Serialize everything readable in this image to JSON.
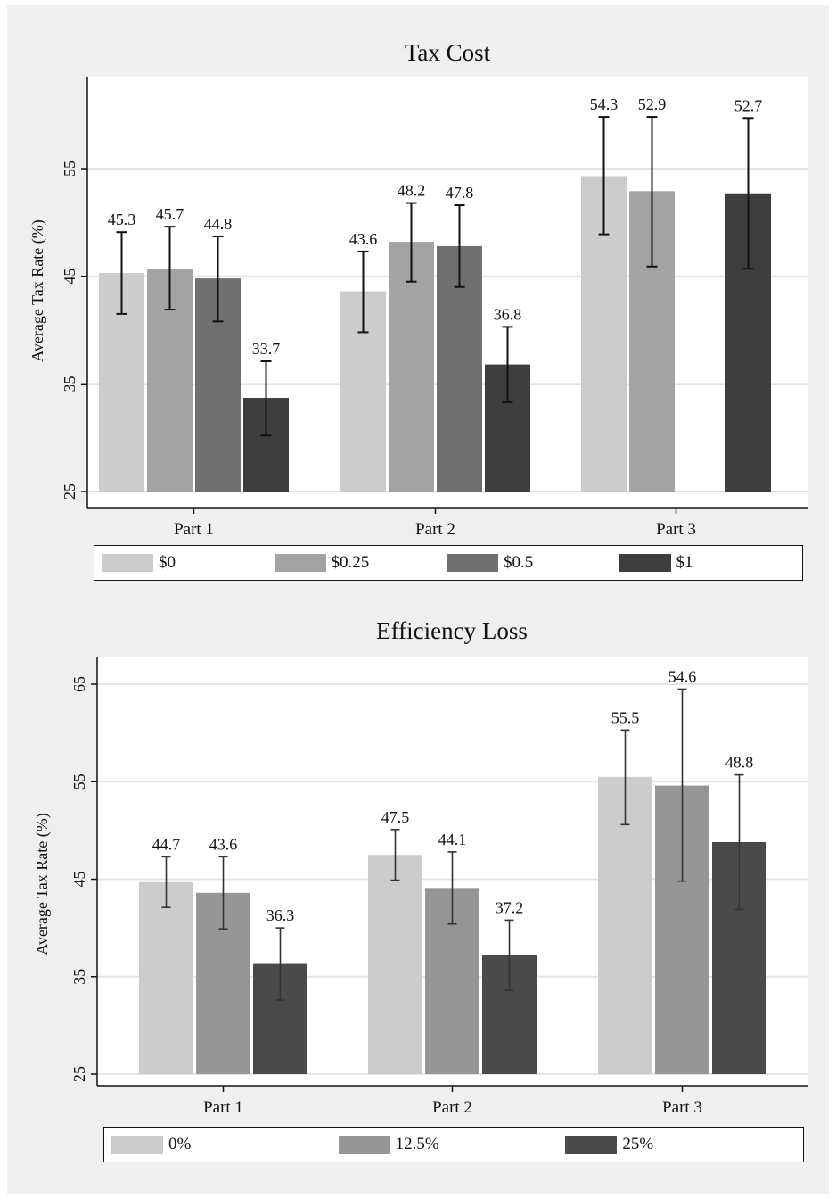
{
  "colors": {
    "panel_bg": "#efefef",
    "plot_bg": "#ffffff",
    "gridline": "#e4e4e4",
    "error_bar": "#111111"
  },
  "chart_data": [
    {
      "type": "bar",
      "title": "Tax Cost",
      "xlabel": "",
      "ylabel": "Average Tax Rate (%)",
      "ylim": [
        25,
        60
      ],
      "yticks": [
        25,
        35,
        45,
        55
      ],
      "grid": true,
      "legend_position": "bottom",
      "categories": [
        "Part 1",
        "Part 2",
        "Part 3"
      ],
      "series": [
        {
          "name": "$0",
          "color": "#cccccc",
          "values": [
            45.3,
            43.6,
            54.3
          ],
          "labels": [
            "45.3",
            "43.6",
            "54.3"
          ],
          "err_low": [
            41.5,
            39.8,
            48.9
          ],
          "err_high": [
            49.1,
            47.3,
            59.8
          ]
        },
        {
          "name": "$0.25",
          "color": "#a3a3a3",
          "values": [
            45.7,
            48.2,
            52.9
          ],
          "labels": [
            "45.7",
            "48.2",
            "52.9"
          ],
          "err_low": [
            41.9,
            44.5,
            45.9
          ],
          "err_high": [
            49.6,
            51.8,
            59.8
          ]
        },
        {
          "name": "$0.5",
          "color": "#707070",
          "values": [
            44.8,
            47.8,
            null
          ],
          "labels": [
            "44.8",
            "47.8",
            ""
          ],
          "err_low": [
            40.8,
            44.0,
            null
          ],
          "err_high": [
            48.7,
            51.6,
            null
          ]
        },
        {
          "name": "$1",
          "color": "#3e3e3e",
          "values": [
            33.7,
            36.8,
            52.7
          ],
          "labels": [
            "33.7",
            "36.8",
            "52.7"
          ],
          "err_low": [
            30.2,
            33.3,
            45.7
          ],
          "err_high": [
            37.1,
            40.3,
            59.7
          ]
        }
      ]
    },
    {
      "type": "bar",
      "title": "Efficiency Loss",
      "xlabel": "",
      "ylabel": "Average Tax Rate (%)",
      "ylim": [
        25,
        67
      ],
      "yticks": [
        25,
        35,
        45,
        55,
        65
      ],
      "grid": true,
      "legend_position": "bottom",
      "categories": [
        "Part 1",
        "Part 2",
        "Part 3"
      ],
      "series": [
        {
          "name": "0%",
          "color": "#cccccc",
          "values": [
            44.7,
            47.5,
            55.5
          ],
          "labels": [
            "44.7",
            "47.5",
            "55.5"
          ],
          "err_low": [
            42.1,
            44.9,
            50.6
          ],
          "err_high": [
            47.3,
            50.1,
            60.3
          ]
        },
        {
          "name": "12.5%",
          "color": "#969696",
          "values": [
            43.6,
            44.1,
            54.6
          ],
          "labels": [
            "43.6",
            "44.1",
            "54.6"
          ],
          "err_low": [
            39.9,
            40.4,
            44.8
          ],
          "err_high": [
            47.3,
            47.8,
            64.5
          ]
        },
        {
          "name": "25%",
          "color": "#4a4a4a",
          "values": [
            36.3,
            37.2,
            48.8
          ],
          "labels": [
            "36.3",
            "37.2",
            "48.8"
          ],
          "err_low": [
            32.6,
            33.6,
            41.9
          ],
          "err_high": [
            40.0,
            40.8,
            55.7
          ]
        }
      ]
    }
  ]
}
